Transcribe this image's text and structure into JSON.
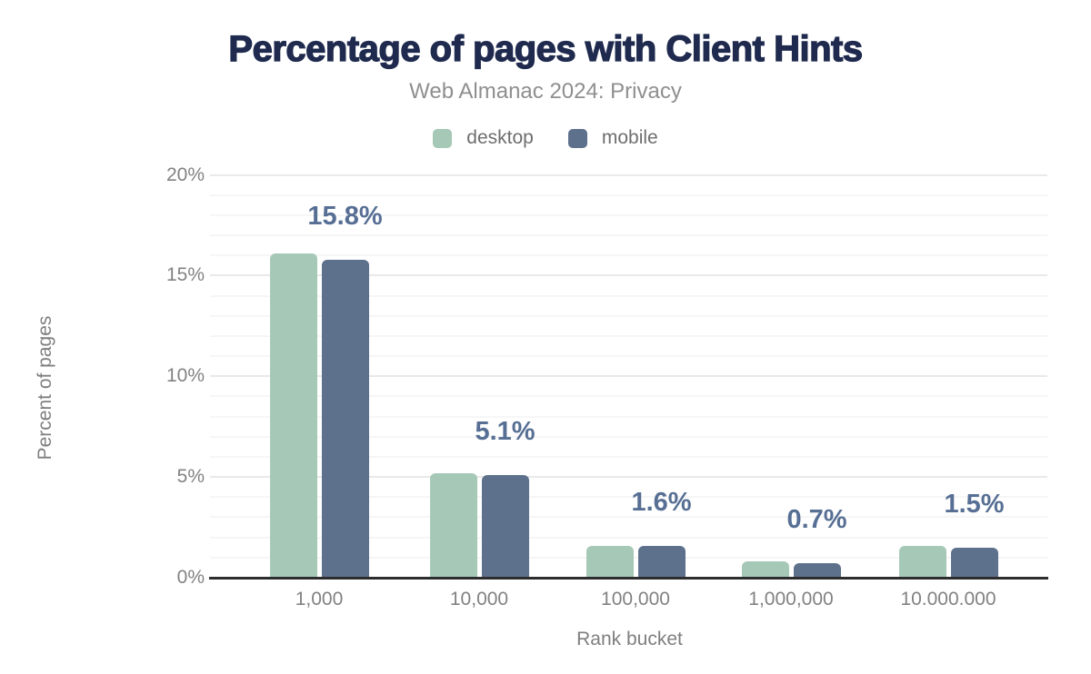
{
  "header": {
    "title": "Percentage of pages with Client Hints",
    "subtitle": "Web Almanac 2024: Privacy"
  },
  "chart_data": {
    "type": "bar",
    "title": "Percentage of pages with Client Hints",
    "subtitle": "Web Almanac 2024: Privacy",
    "xlabel": "Rank bucket",
    "ylabel": "Percent of pages",
    "categories": [
      "1,000",
      "10,000",
      "100,000",
      "1,000,000",
      "10.000.000"
    ],
    "series": [
      {
        "name": "desktop",
        "color": "#a6c8b7",
        "values": [
          16.1,
          5.2,
          1.6,
          0.8,
          1.6
        ]
      },
      {
        "name": "mobile",
        "color": "#5e718c",
        "values": [
          15.8,
          5.1,
          1.6,
          0.7,
          1.5
        ]
      }
    ],
    "value_labels": [
      "15.8%",
      "5.1%",
      "1.6%",
      "0.7%",
      "1.5%"
    ],
    "value_label_series": "mobile",
    "ylim": [
      0,
      20
    ],
    "ytick_values": [
      0,
      5,
      10,
      15,
      20
    ],
    "yticks": [
      "0%",
      "5%",
      "10%",
      "15%",
      "20%"
    ],
    "grid": {
      "major_step": 5,
      "minor_step": 1,
      "minor_on": true
    },
    "legend_position": "top",
    "colors": {
      "title": "#1f2a4e",
      "subtitle": "#8f8f8f",
      "value_label": "#576f94",
      "axis_line": "#2d2d2d",
      "tick_text": "#828282"
    }
  }
}
